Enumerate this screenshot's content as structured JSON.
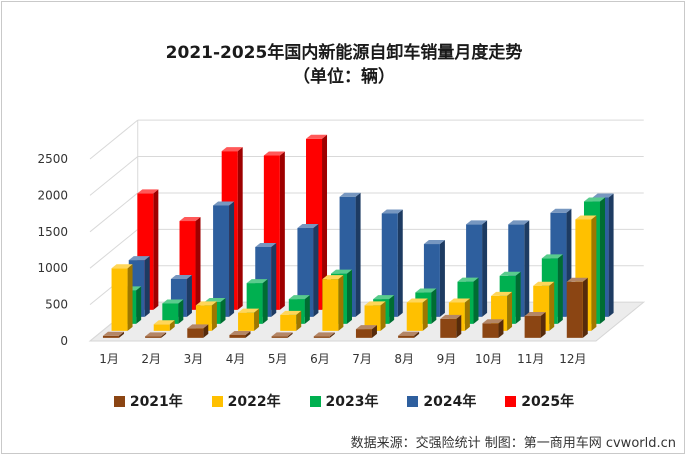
{
  "chart_data": {
    "type": "bar",
    "style": "3d-grouped",
    "title": "2021-2025年国内新能源自卸车销量月度走势",
    "subtitle": "（单位：辆）",
    "categories": [
      "1月",
      "2月",
      "3月",
      "4月",
      "5月",
      "6月",
      "7月",
      "8月",
      "9月",
      "10月",
      "11月",
      "12月"
    ],
    "yticks": [
      "0",
      "500",
      "1000",
      "1500",
      "2000",
      "2500"
    ],
    "ylim": [
      0,
      2500
    ],
    "series": [
      {
        "name": "2021年",
        "color": "#8b4513",
        "values": [
          28,
          20,
          130,
          40,
          15,
          20,
          120,
          30,
          260,
          200,
          300,
          770
        ]
      },
      {
        "name": "2022年",
        "color": "#ffc000",
        "values": [
          860,
          90,
          350,
          250,
          220,
          710,
          350,
          390,
          390,
          480,
          620,
          1530
        ]
      },
      {
        "name": "2023年",
        "color": "#00b050",
        "values": [
          460,
          280,
          300,
          560,
          340,
          690,
          340,
          430,
          580,
          660,
          900,
          1680
        ]
      },
      {
        "name": "2024年",
        "color": "#2e5f9e",
        "values": [
          780,
          520,
          1530,
          960,
          1220,
          1650,
          1420,
          1000,
          1270,
          1270,
          1430,
          1640
        ]
      },
      {
        "name": "2025年",
        "color": "#ff0000",
        "values": [
          1600,
          1220,
          2180,
          2120,
          2350,
          null,
          null,
          null,
          null,
          null,
          null,
          null
        ]
      }
    ]
  },
  "legend": {
    "items": [
      {
        "label": "2021年",
        "color": "#8b4513"
      },
      {
        "label": "2022年",
        "color": "#ffc000"
      },
      {
        "label": "2023年",
        "color": "#00b050"
      },
      {
        "label": "2024年",
        "color": "#2e5f9e"
      },
      {
        "label": "2025年",
        "color": "#ff0000"
      }
    ]
  },
  "source": "数据来源：交强险统计   制图：第一商用车网 cvworld.cn"
}
